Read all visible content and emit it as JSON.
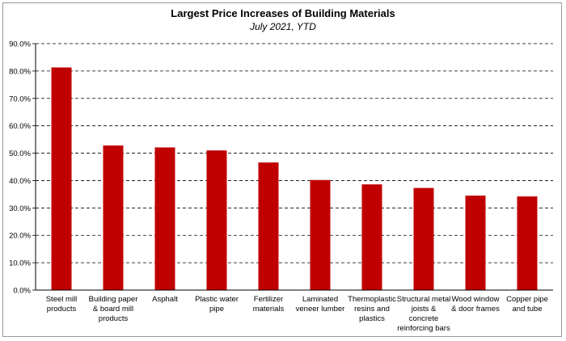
{
  "chart_data": {
    "type": "bar",
    "title": "Largest Price Increases of Building Materials",
    "subtitle": "July 2021, YTD",
    "categories": [
      [
        "Steel mill",
        "products"
      ],
      [
        "Building paper",
        "& board mill",
        "products"
      ],
      [
        "Asphalt"
      ],
      [
        "Plastic water",
        "pipe"
      ],
      [
        "Fertilizer",
        "materials"
      ],
      [
        "Laminated",
        "veneer lumber"
      ],
      [
        "Thermoplastic",
        "resins and",
        "plastics"
      ],
      [
        "Structural metal",
        "joists &",
        "concrete",
        "reinforcing bars"
      ],
      [
        "Wood window",
        "& door frames"
      ],
      [
        "Copper pipe",
        "and tube"
      ]
    ],
    "values": [
      81.3,
      52.8,
      52.1,
      51.0,
      46.6,
      40.2,
      38.6,
      37.3,
      34.5,
      34.2
    ],
    "ylim": [
      0,
      90
    ],
    "yticks": [
      "0.0%",
      "10.0%",
      "20.0%",
      "30.0%",
      "40.0%",
      "50.0%",
      "60.0%",
      "70.0%",
      "80.0%",
      "90.0%"
    ],
    "bar_color": "#c00000",
    "grid": true
  }
}
